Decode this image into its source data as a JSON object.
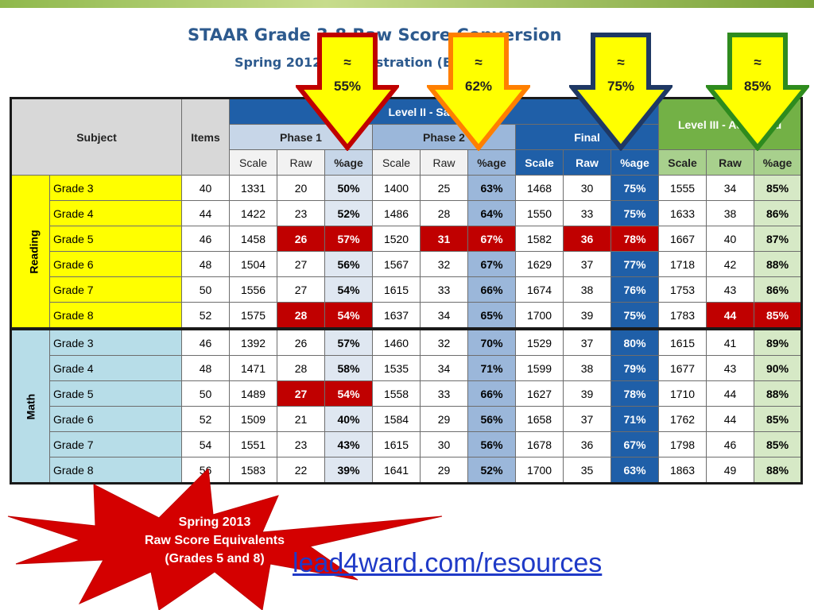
{
  "title_line_1": "STAAR Grade 3-8 Raw Score Conversion",
  "title_line_2": "Spring 2012 Administration (English)",
  "headers": {
    "subject": "Subject",
    "items": "Items",
    "level2": "Level II - Satisfactory",
    "level3": "Level III - Advanced",
    "phase1": "Phase 1",
    "phase2": "Phase 2",
    "final": "Final",
    "scale": "Scale",
    "raw": "Raw",
    "pct": "%age"
  },
  "arrows": [
    {
      "symbol": "≈",
      "value": "55%",
      "fill": "#ffff00",
      "stroke": "#c00000"
    },
    {
      "symbol": "≈",
      "value": "62%",
      "fill": "#ffff00",
      "stroke": "#ff7f00"
    },
    {
      "symbol": "≈",
      "value": "75%",
      "fill": "#ffff00",
      "stroke": "#1f3864"
    },
    {
      "symbol": "≈",
      "value": "85%",
      "fill": "#ffff00",
      "stroke": "#2e8b1e"
    }
  ],
  "subjects": [
    {
      "name": "Reading",
      "rows": [
        {
          "grade": "Grade 3",
          "items": "40",
          "p1_scale": "1331",
          "p1_raw": "20",
          "p1_pct": "50%",
          "p2_scale": "1400",
          "p2_raw": "25",
          "p2_pct": "63%",
          "f_scale": "1468",
          "f_raw": "30",
          "f_pct": "75%",
          "l3_scale": "1555",
          "l3_raw": "34",
          "l3_pct": "85%"
        },
        {
          "grade": "Grade 4",
          "items": "44",
          "p1_scale": "1422",
          "p1_raw": "23",
          "p1_pct": "52%",
          "p2_scale": "1486",
          "p2_raw": "28",
          "p2_pct": "64%",
          "f_scale": "1550",
          "f_raw": "33",
          "f_pct": "75%",
          "l3_scale": "1633",
          "l3_raw": "38",
          "l3_pct": "86%"
        },
        {
          "grade": "Grade 5",
          "items": "46",
          "p1_scale": "1458",
          "p1_raw": "26",
          "p1_pct": "57%",
          "p2_scale": "1520",
          "p2_raw": "31",
          "p2_pct": "67%",
          "f_scale": "1582",
          "f_raw": "36",
          "f_pct": "78%",
          "l3_scale": "1667",
          "l3_raw": "40",
          "l3_pct": "87%"
        },
        {
          "grade": "Grade 6",
          "items": "48",
          "p1_scale": "1504",
          "p1_raw": "27",
          "p1_pct": "56%",
          "p2_scale": "1567",
          "p2_raw": "32",
          "p2_pct": "67%",
          "f_scale": "1629",
          "f_raw": "37",
          "f_pct": "77%",
          "l3_scale": "1718",
          "l3_raw": "42",
          "l3_pct": "88%"
        },
        {
          "grade": "Grade 7",
          "items": "50",
          "p1_scale": "1556",
          "p1_raw": "27",
          "p1_pct": "54%",
          "p2_scale": "1615",
          "p2_raw": "33",
          "p2_pct": "66%",
          "f_scale": "1674",
          "f_raw": "38",
          "f_pct": "76%",
          "l3_scale": "1753",
          "l3_raw": "43",
          "l3_pct": "86%"
        },
        {
          "grade": "Grade 8",
          "items": "52",
          "p1_scale": "1575",
          "p1_raw": "28",
          "p1_pct": "54%",
          "p2_scale": "1637",
          "p2_raw": "34",
          "p2_pct": "65%",
          "f_scale": "1700",
          "f_raw": "39",
          "f_pct": "75%",
          "l3_scale": "1783",
          "l3_raw": "44",
          "l3_pct": "85%"
        }
      ]
    },
    {
      "name": "Math",
      "rows": [
        {
          "grade": "Grade 3",
          "items": "46",
          "p1_scale": "1392",
          "p1_raw": "26",
          "p1_pct": "57%",
          "p2_scale": "1460",
          "p2_raw": "32",
          "p2_pct": "70%",
          "f_scale": "1529",
          "f_raw": "37",
          "f_pct": "80%",
          "l3_scale": "1615",
          "l3_raw": "41",
          "l3_pct": "89%"
        },
        {
          "grade": "Grade 4",
          "items": "48",
          "p1_scale": "1471",
          "p1_raw": "28",
          "p1_pct": "58%",
          "p2_scale": "1535",
          "p2_raw": "34",
          "p2_pct": "71%",
          "f_scale": "1599",
          "f_raw": "38",
          "f_pct": "79%",
          "l3_scale": "1677",
          "l3_raw": "43",
          "l3_pct": "90%"
        },
        {
          "grade": "Grade 5",
          "items": "50",
          "p1_scale": "1489",
          "p1_raw": "27",
          "p1_pct": "54%",
          "p2_scale": "1558",
          "p2_raw": "33",
          "p2_pct": "66%",
          "f_scale": "1627",
          "f_raw": "39",
          "f_pct": "78%",
          "l3_scale": "1710",
          "l3_raw": "44",
          "l3_pct": "88%"
        },
        {
          "grade": "Grade 6",
          "items": "52",
          "p1_scale": "1509",
          "p1_raw": "21",
          "p1_pct": "40%",
          "p2_scale": "1584",
          "p2_raw": "29",
          "p2_pct": "56%",
          "f_scale": "1658",
          "f_raw": "37",
          "f_pct": "71%",
          "l3_scale": "1762",
          "l3_raw": "44",
          "l3_pct": "85%"
        },
        {
          "grade": "Grade 7",
          "items": "54",
          "p1_scale": "1551",
          "p1_raw": "23",
          "p1_pct": "43%",
          "p2_scale": "1615",
          "p2_raw": "30",
          "p2_pct": "56%",
          "f_scale": "1678",
          "f_raw": "36",
          "f_pct": "67%",
          "l3_scale": "1798",
          "l3_raw": "46",
          "l3_pct": "85%"
        },
        {
          "grade": "Grade 8",
          "items": "56",
          "p1_scale": "1583",
          "p1_raw": "22",
          "p1_pct": "39%",
          "p2_scale": "1641",
          "p2_raw": "29",
          "p2_pct": "52%",
          "f_scale": "1700",
          "f_raw": "35",
          "f_pct": "63%",
          "l3_scale": "1863",
          "l3_raw": "49",
          "l3_pct": "88%"
        }
      ]
    }
  ],
  "highlighted_cells": [
    {
      "subject": 0,
      "row": 2,
      "fields": [
        "p1_raw",
        "p1_pct",
        "p2_raw",
        "p2_pct",
        "f_raw",
        "f_pct"
      ]
    },
    {
      "subject": 0,
      "row": 5,
      "fields": [
        "p1_raw",
        "p1_pct",
        "l3_raw",
        "l3_pct"
      ]
    },
    {
      "subject": 1,
      "row": 2,
      "fields": [
        "p1_raw",
        "p1_pct"
      ]
    }
  ],
  "starburst": {
    "line1": "Spring 2013",
    "line2": "Raw Score Equivalents",
    "line3": "(Grades 5 and 8)",
    "color": "#d40000"
  },
  "link_text": "lead4ward.com/resources",
  "colors": {
    "reading": "#ffff00",
    "math": "#b7dde8",
    "final": "#1f5fa8",
    "level3": "#73b146",
    "highlight": "#c00000"
  }
}
